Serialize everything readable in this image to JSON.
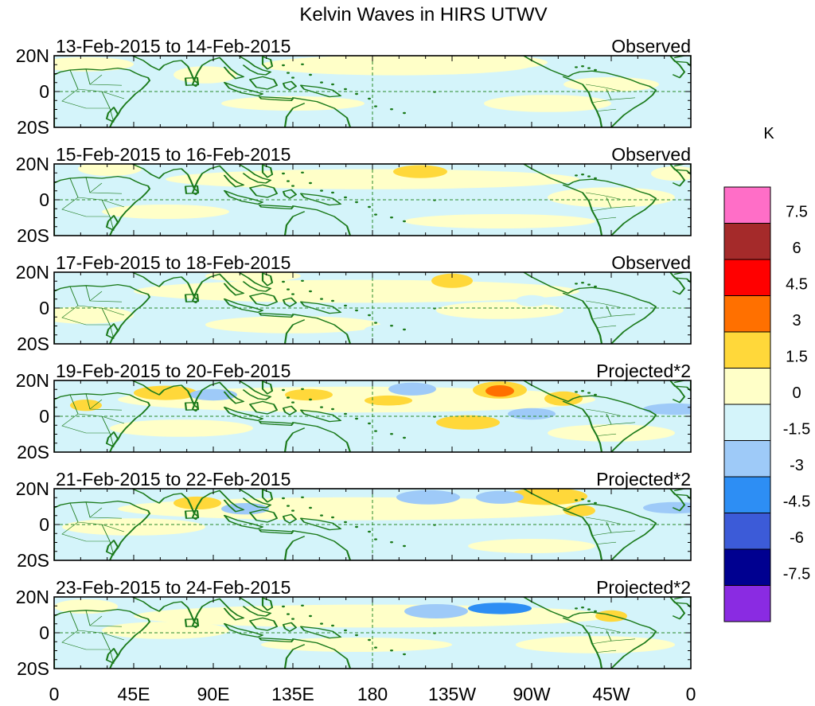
{
  "figure": {
    "title": "Kelvin Waves in HIRS UTWV",
    "colorbar_unit": "K"
  },
  "chart_data": {
    "type": "heatmap",
    "title": "Kelvin Waves in HIRS UTWV",
    "x_ticks": [
      "0",
      "45E",
      "90E",
      "135E",
      "180",
      "135W",
      "90W",
      "45W",
      "0"
    ],
    "x_tick_lon": [
      0,
      45,
      90,
      135,
      180,
      225,
      270,
      315,
      360
    ],
    "y_ticks": [
      "20N",
      "0",
      "20S"
    ],
    "y_tick_lat": [
      20,
      0,
      -20
    ],
    "xlim": [
      0,
      360
    ],
    "ylim": [
      -20,
      20
    ],
    "colorbar": {
      "unit": "K",
      "levels": [
        "7.5",
        "6",
        "4.5",
        "3",
        "1.5",
        "0",
        "-1.5",
        "-3",
        "-4.5",
        "-6",
        "-7.5"
      ],
      "colors": [
        "#ff6ec7",
        "#a52a2a",
        "#ff0000",
        "#ff7000",
        "#ffd83a",
        "#ffffc8",
        "#d4f4fa",
        "#9ecaf8",
        "#2d8ef4",
        "#3c5bd8",
        "#000090",
        "#8a2be2"
      ]
    },
    "panels": [
      {
        "date_range": "13-Feb-2015 to 14-Feb-2015",
        "mode": "Observed"
      },
      {
        "date_range": "15-Feb-2015 to 16-Feb-2015",
        "mode": "Observed"
      },
      {
        "date_range": "17-Feb-2015 to 18-Feb-2015",
        "mode": "Observed"
      },
      {
        "date_range": "19-Feb-2015 to 20-Feb-2015",
        "mode": "Projected*2"
      },
      {
        "date_range": "21-Feb-2015 to 22-Feb-2015",
        "mode": "Projected*2"
      },
      {
        "date_range": "23-Feb-2015 to 24-Feb-2015",
        "mode": "Projected*2"
      }
    ]
  }
}
